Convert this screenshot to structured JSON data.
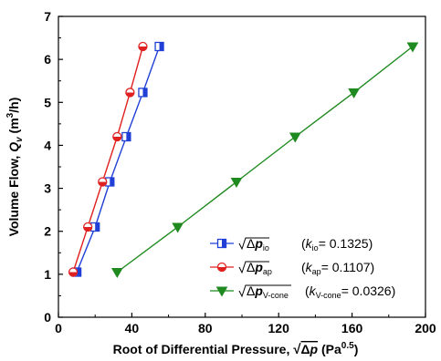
{
  "chart_data": {
    "type": "line",
    "xlabel": "Root of Differential Pressure, √Δp (Pa^0.5)",
    "ylabel": "Volume Flow, Qv (m³/h)",
    "xlim": [
      0,
      200
    ],
    "ylim": [
      0,
      7
    ],
    "x_ticks": [
      "0",
      "40",
      "80",
      "120",
      "160",
      "200"
    ],
    "y_ticks": [
      "0",
      "1",
      "2",
      "3",
      "4",
      "5",
      "6",
      "7"
    ],
    "grid": false,
    "legend_position": "bottom-right",
    "series": [
      {
        "name": "√Δp_io",
        "coefficient": "(k_io= 0.1325)",
        "color": "#1f3fd6",
        "marker": "square-half-filled",
        "x": [
          10,
          20,
          28,
          37,
          46,
          55
        ],
        "y": [
          1.05,
          2.1,
          3.15,
          4.2,
          5.23,
          6.3
        ]
      },
      {
        "name": "√Δp_ap",
        "coefficient": "(k_ap= 0.1107)",
        "color": "#e02020",
        "marker": "circle-half-filled",
        "x": [
          8,
          16,
          24,
          32,
          39,
          46
        ],
        "y": [
          1.05,
          2.1,
          3.15,
          4.2,
          5.23,
          6.3
        ]
      },
      {
        "name": "√Δp_V-cone",
        "coefficient": "(k_V-cone= 0.0326)",
        "color": "#1f8a1f",
        "marker": "triangle-down",
        "x": [
          32,
          65,
          97,
          129,
          161,
          193
        ],
        "y": [
          1.05,
          2.1,
          3.15,
          4.2,
          5.23,
          6.3
        ]
      }
    ]
  }
}
